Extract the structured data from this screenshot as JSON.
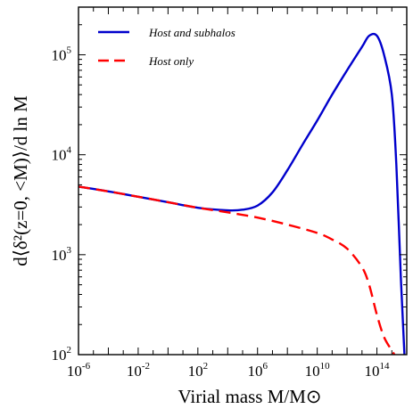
{
  "chart_data": {
    "type": "line",
    "title": "",
    "xlabel": "Virial mass M/M⊙",
    "ylabel": "d⟨δ²(z=0, <M)⟩/d ln M",
    "x_scale": "log",
    "y_scale": "log",
    "xlim": [
      1e-06,
      1e+16
    ],
    "ylim": [
      100,
      300000
    ],
    "x_ticks": [
      {
        "base": "10",
        "exp": "-6",
        "value": 1e-06
      },
      {
        "base": "10",
        "exp": "-2",
        "value": 0.01
      },
      {
        "base": "10",
        "exp": "2",
        "value": 100
      },
      {
        "base": "10",
        "exp": "6",
        "value": 1000000.0
      },
      {
        "base": "10",
        "exp": "10",
        "value": 10000000000.0
      },
      {
        "base": "10",
        "exp": "14",
        "value": 100000000000000.0
      }
    ],
    "y_ticks": [
      {
        "base": "10",
        "exp": "2",
        "value": 100
      },
      {
        "base": "10",
        "exp": "3",
        "value": 1000
      },
      {
        "base": "10",
        "exp": "4",
        "value": 10000
      },
      {
        "base": "10",
        "exp": "5",
        "value": 100000
      }
    ],
    "legend_position": "top-left",
    "grid": false,
    "series": [
      {
        "name": "Host and subhalos",
        "color": "#0000cc",
        "style": "solid",
        "x": [
          1e-06,
          0.0001,
          0.01,
          1,
          100,
          10000,
          100000,
          1000000.0,
          10000000.0,
          100000000.0,
          1000000000.0,
          10000000000.0,
          100000000000.0,
          1000000000000.0,
          10000000000000.0,
          30000000000000.0,
          100000000000000.0,
          300000000000000.0,
          1000000000000000.0,
          2000000000000000.0,
          4000000000000000.0,
          7000000000000000.0
        ],
        "y": [
          4800,
          4300,
          3800,
          3350,
          2950,
          2780,
          2820,
          3100,
          4200,
          7000,
          12500,
          22000,
          40000,
          70000,
          120000,
          155000,
          155000,
          100000,
          40000,
          8000,
          600,
          100
        ]
      },
      {
        "name": "Host only",
        "color": "#ff0000",
        "style": "dashed",
        "x": [
          1e-06,
          0.0001,
          0.01,
          1,
          100,
          10000,
          1000000.0,
          100000000.0,
          10000000000.0,
          100000000000.0,
          1000000000000.0,
          10000000000000.0,
          30000000000000.0,
          100000000000000.0,
          300000000000000.0,
          1000000000000000.0,
          1500000000000000.0
        ],
        "y": [
          4800,
          4300,
          3800,
          3350,
          2950,
          2650,
          2350,
          2000,
          1650,
          1420,
          1150,
          750,
          500,
          250,
          150,
          110,
          100
        ]
      }
    ]
  }
}
